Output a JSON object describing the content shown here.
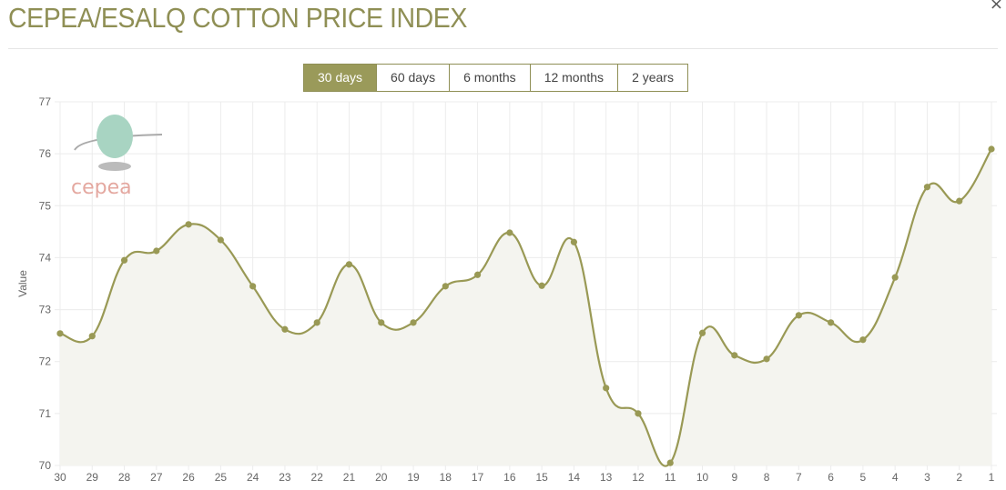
{
  "header": {
    "title": "CEPEA/ESALQ COTTON PRICE INDEX",
    "close": "×"
  },
  "range_tabs": [
    {
      "label": "30 days",
      "active": true
    },
    {
      "label": "60 days"
    },
    {
      "label": "6 months"
    },
    {
      "label": "12 months"
    },
    {
      "label": "2 years"
    }
  ],
  "logo": {
    "text": "cepea"
  },
  "chart_data": {
    "type": "area",
    "title": "",
    "xlabel": "",
    "ylabel": "Value",
    "ylim": [
      70,
      77
    ],
    "yticks": [
      70,
      71,
      72,
      73,
      74,
      75,
      76,
      77
    ],
    "categories": [
      "30",
      "29",
      "28",
      "27",
      "26",
      "25",
      "24",
      "23",
      "22",
      "21",
      "20",
      "19",
      "18",
      "17",
      "16",
      "15",
      "14",
      "13",
      "12",
      "11",
      "10",
      "9",
      "8",
      "7",
      "6",
      "5",
      "4",
      "3",
      "2",
      "1"
    ],
    "values": [
      72.54,
      72.49,
      73.95,
      74.13,
      74.64,
      74.34,
      73.45,
      72.62,
      72.75,
      73.87,
      72.75,
      72.75,
      73.45,
      73.67,
      74.48,
      73.46,
      74.3,
      71.49,
      71.0,
      70.05,
      72.55,
      72.12,
      72.05,
      72.89,
      72.75,
      72.42,
      73.62,
      75.36,
      75.09,
      76.09
    ],
    "grid": true,
    "colors": {
      "line": "#999955",
      "fill": "#f4f4ef"
    }
  }
}
